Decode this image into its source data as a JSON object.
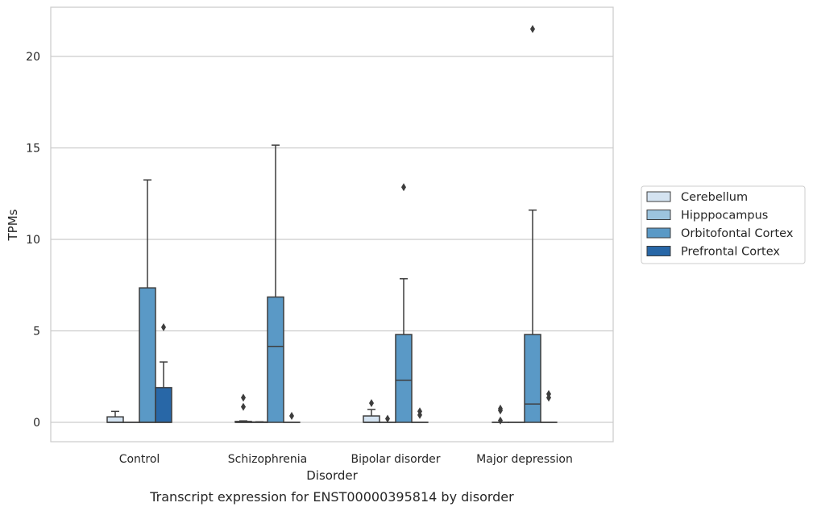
{
  "chart_data": {
    "type": "box",
    "caption": "Transcript expression for ENST00000395814 by disorder",
    "xlabel": "Disorder",
    "ylabel": "TPMs",
    "ylim": [
      -1.05,
      22.6
    ],
    "yticks": [
      0,
      5,
      10,
      15,
      20
    ],
    "grid": "horizontal",
    "legend_position": "right",
    "categories": [
      "Control",
      "Schizophrenia",
      "Bipolar disorder",
      "Major depression"
    ],
    "series": [
      {
        "name": "Cerebellum",
        "color": "#d4e3f1",
        "boxes": [
          {
            "q1": 0,
            "median": 0,
            "q3": 0.3,
            "whisker_low": 0,
            "whisker_high": 0.6,
            "outliers": []
          },
          {
            "q1": 0,
            "median": 0,
            "q3": 0.05,
            "whisker_low": 0,
            "whisker_high": 0.08,
            "outliers": [
              0.85,
              1.35
            ]
          },
          {
            "q1": 0,
            "median": 0,
            "q3": 0.35,
            "whisker_low": 0,
            "whisker_high": 0.7,
            "outliers": [
              1.05
            ]
          },
          {
            "q1": 0,
            "median": 0,
            "q3": 0,
            "whisker_low": 0,
            "whisker_high": 0,
            "outliers": [
              0.1,
              0.65,
              0.75
            ]
          }
        ]
      },
      {
        "name": "Hipppocampus",
        "color": "#9cc4de",
        "boxes": [
          {
            "q1": 0,
            "median": 0,
            "q3": 0,
            "whisker_low": 0,
            "whisker_high": 0,
            "outliers": []
          },
          {
            "q1": 0,
            "median": 0,
            "q3": 0.02,
            "whisker_low": 0,
            "whisker_high": 0.03,
            "outliers": []
          },
          {
            "q1": 0,
            "median": 0,
            "q3": 0,
            "whisker_low": 0,
            "whisker_high": 0,
            "outliers": [
              0.2
            ]
          },
          {
            "q1": 0,
            "median": 0,
            "q3": 0,
            "whisker_low": 0,
            "whisker_high": 0,
            "outliers": []
          }
        ]
      },
      {
        "name": "Orbitofontal Cortex",
        "color": "#5a99c6",
        "boxes": [
          {
            "q1": 0,
            "median": 0,
            "q3": 7.35,
            "whisker_low": 0,
            "whisker_high": 13.25,
            "outliers": []
          },
          {
            "q1": 0,
            "median": 4.15,
            "q3": 6.85,
            "whisker_low": 0,
            "whisker_high": 15.15,
            "outliers": []
          },
          {
            "q1": 0,
            "median": 2.3,
            "q3": 4.8,
            "whisker_low": 0,
            "whisker_high": 7.85,
            "outliers": [
              12.85
            ]
          },
          {
            "q1": 0,
            "median": 1.0,
            "q3": 4.8,
            "whisker_low": 0,
            "whisker_high": 11.6,
            "outliers": [
              21.5
            ]
          }
        ]
      },
      {
        "name": "Prefrontal Cortex",
        "color": "#2867a7",
        "boxes": [
          {
            "q1": 0,
            "median": 0,
            "q3": 1.9,
            "whisker_low": 0,
            "whisker_high": 3.3,
            "outliers": [
              5.2
            ]
          },
          {
            "q1": 0,
            "median": 0,
            "q3": 0,
            "whisker_low": 0,
            "whisker_high": 0,
            "outliers": [
              0.35
            ]
          },
          {
            "q1": 0,
            "median": 0,
            "q3": 0,
            "whisker_low": 0,
            "whisker_high": 0,
            "outliers": [
              0.4,
              0.6
            ]
          },
          {
            "q1": 0,
            "median": 0,
            "q3": 0,
            "whisker_low": 0,
            "whisker_high": 0,
            "outliers": [
              1.35,
              1.55
            ]
          }
        ]
      }
    ]
  }
}
